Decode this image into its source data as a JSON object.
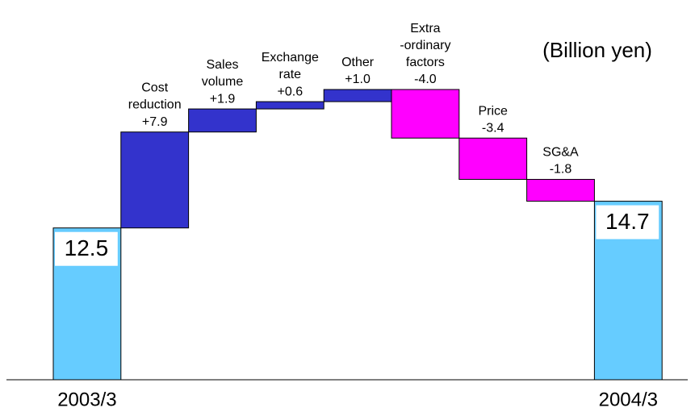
{
  "chart_data": {
    "type": "waterfall",
    "annotation": "(Billion yen)",
    "categories": [
      "2003/3",
      "Cost\nreduction",
      "Sales\nvolume",
      "Exchange\nrate",
      "Other",
      "Extra\n-ordinary\nfactors",
      "Price",
      "SG&A",
      "2004/3"
    ],
    "values": [
      12.5,
      7.9,
      1.9,
      0.6,
      1.0,
      -4.0,
      -3.4,
      -1.8,
      14.7
    ],
    "value_labels": [
      "12.5",
      "+7.9",
      "+1.9",
      "+0.6",
      "+1.0",
      "-4.0",
      "-3.4",
      "-1.8",
      "14.7"
    ],
    "is_total": [
      true,
      false,
      false,
      false,
      false,
      false,
      false,
      false,
      true
    ],
    "total_color": "#66ccff",
    "increase_color": "#3333cc",
    "decrease_color": "#ff00ff"
  }
}
